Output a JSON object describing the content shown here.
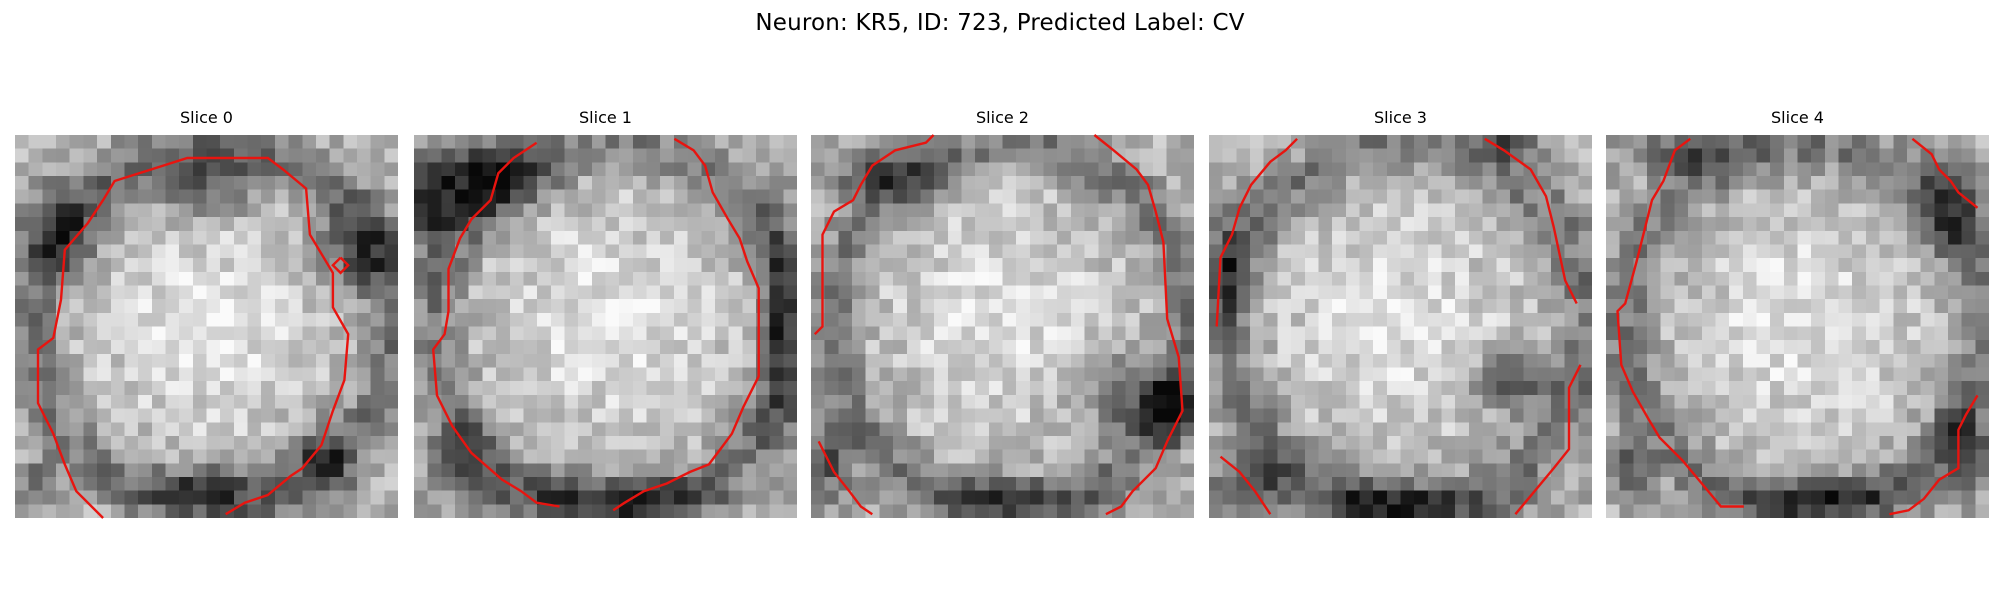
{
  "figure": {
    "title": "Neuron: KR5, ID: 723, Predicted Label: CV"
  },
  "contour_color": "#e8140f",
  "slices": [
    {
      "label": "Slice 0",
      "dark_spots": [
        [
          0.5,
          0.13,
          0.14,
          0.08
        ],
        [
          0.12,
          0.25,
          0.1,
          0.12
        ],
        [
          0.9,
          0.3,
          0.1,
          0.12
        ],
        [
          0.06,
          0.9,
          0.05,
          0.05
        ],
        [
          0.5,
          0.92,
          0.15,
          0.06
        ],
        [
          0.8,
          0.85,
          0.08,
          0.1
        ]
      ],
      "bright_spots": [
        [
          0.47,
          0.52,
          0.3,
          0.32
        ]
      ],
      "contours": [
        [
          [
            0.23,
            1.0
          ],
          [
            0.16,
            0.93
          ],
          [
            0.13,
            0.86
          ],
          [
            0.1,
            0.78
          ],
          [
            0.06,
            0.7
          ],
          [
            0.06,
            0.56
          ],
          [
            0.1,
            0.53
          ],
          [
            0.12,
            0.43
          ],
          [
            0.13,
            0.3
          ],
          [
            0.19,
            0.23
          ],
          [
            0.23,
            0.17
          ],
          [
            0.26,
            0.12
          ],
          [
            0.45,
            0.06
          ],
          [
            0.66,
            0.06
          ],
          [
            0.7,
            0.09
          ],
          [
            0.76,
            0.14
          ],
          [
            0.77,
            0.26
          ],
          [
            0.83,
            0.36
          ],
          [
            0.83,
            0.45
          ],
          [
            0.87,
            0.52
          ],
          [
            0.86,
            0.64
          ],
          [
            0.83,
            0.72
          ],
          [
            0.8,
            0.81
          ],
          [
            0.75,
            0.87
          ],
          [
            0.72,
            0.89
          ],
          [
            0.66,
            0.94
          ],
          [
            0.6,
            0.96
          ],
          [
            0.55,
            0.99
          ]
        ],
        [
          [
            0.85,
            0.32
          ],
          [
            0.87,
            0.34
          ],
          [
            0.85,
            0.36
          ],
          [
            0.83,
            0.34
          ],
          [
            0.85,
            0.32
          ]
        ]
      ]
    },
    {
      "label": "Slice 1",
      "dark_spots": [
        [
          0.1,
          0.13,
          0.13,
          0.12
        ],
        [
          0.24,
          0.11,
          0.12,
          0.08
        ],
        [
          0.04,
          0.2,
          0.05,
          0.1
        ],
        [
          0.5,
          0.95,
          0.3,
          0.06
        ],
        [
          0.95,
          0.5,
          0.05,
          0.3
        ],
        [
          0.12,
          0.85,
          0.08,
          0.08
        ]
      ],
      "bright_spots": [
        [
          0.5,
          0.45,
          0.32,
          0.33
        ]
      ],
      "contours": [
        [
          [
            0.38,
            0.97
          ],
          [
            0.32,
            0.96
          ],
          [
            0.28,
            0.93
          ],
          [
            0.23,
            0.9
          ],
          [
            0.15,
            0.83
          ],
          [
            0.1,
            0.76
          ],
          [
            0.06,
            0.68
          ],
          [
            0.05,
            0.56
          ],
          [
            0.08,
            0.52
          ],
          [
            0.09,
            0.46
          ],
          [
            0.09,
            0.35
          ],
          [
            0.12,
            0.27
          ],
          [
            0.15,
            0.22
          ],
          [
            0.2,
            0.17
          ],
          [
            0.22,
            0.1
          ],
          [
            0.26,
            0.06
          ],
          [
            0.32,
            0.02
          ]
        ],
        [
          [
            0.68,
            0.01
          ],
          [
            0.73,
            0.04
          ],
          [
            0.76,
            0.08
          ],
          [
            0.78,
            0.15
          ],
          [
            0.82,
            0.22
          ],
          [
            0.85,
            0.27
          ],
          [
            0.87,
            0.33
          ],
          [
            0.9,
            0.4
          ],
          [
            0.9,
            0.52
          ],
          [
            0.9,
            0.63
          ],
          [
            0.86,
            0.71
          ],
          [
            0.83,
            0.78
          ],
          [
            0.8,
            0.82
          ],
          [
            0.77,
            0.86
          ],
          [
            0.72,
            0.88
          ],
          [
            0.66,
            0.91
          ],
          [
            0.6,
            0.93
          ],
          [
            0.55,
            0.96
          ],
          [
            0.52,
            0.98
          ]
        ]
      ]
    },
    {
      "label": "Slice 2",
      "dark_spots": [
        [
          0.85,
          0.68,
          0.13,
          0.1
        ],
        [
          0.94,
          0.72,
          0.06,
          0.08
        ],
        [
          0.2,
          0.1,
          0.14,
          0.06
        ],
        [
          0.04,
          0.85,
          0.06,
          0.1
        ],
        [
          0.5,
          0.95,
          0.2,
          0.05
        ]
      ],
      "bright_spots": [
        [
          0.45,
          0.4,
          0.3,
          0.28
        ]
      ],
      "contours": [
        [
          [
            0.01,
            0.52
          ],
          [
            0.03,
            0.5
          ],
          [
            0.03,
            0.26
          ],
          [
            0.06,
            0.2
          ],
          [
            0.11,
            0.17
          ],
          [
            0.13,
            0.13
          ],
          [
            0.16,
            0.08
          ],
          [
            0.22,
            0.04
          ],
          [
            0.3,
            0.02
          ],
          [
            0.32,
            0.0
          ]
        ],
        [
          [
            0.74,
            0.0
          ],
          [
            0.79,
            0.04
          ],
          [
            0.85,
            0.09
          ],
          [
            0.88,
            0.13
          ],
          [
            0.9,
            0.2
          ],
          [
            0.92,
            0.28
          ],
          [
            0.93,
            0.48
          ],
          [
            0.96,
            0.58
          ],
          [
            0.97,
            0.72
          ],
          [
            0.93,
            0.8
          ],
          [
            0.9,
            0.87
          ],
          [
            0.84,
            0.93
          ],
          [
            0.81,
            0.97
          ],
          [
            0.77,
            0.99
          ]
        ],
        [
          [
            0.02,
            0.8
          ],
          [
            0.06,
            0.88
          ],
          [
            0.1,
            0.93
          ],
          [
            0.13,
            0.97
          ],
          [
            0.16,
            0.99
          ]
        ]
      ]
    },
    {
      "label": "Slice 3",
      "dark_spots": [
        [
          0.8,
          0.64,
          0.12,
          0.08
        ],
        [
          0.11,
          0.9,
          0.1,
          0.07
        ],
        [
          0.5,
          0.96,
          0.3,
          0.05
        ],
        [
          0.05,
          0.35,
          0.05,
          0.14
        ],
        [
          0.78,
          0.03,
          0.1,
          0.04
        ]
      ],
      "bright_spots": [
        [
          0.45,
          0.45,
          0.3,
          0.3
        ]
      ],
      "contours": [
        [
          [
            0.02,
            0.5
          ],
          [
            0.03,
            0.32
          ],
          [
            0.06,
            0.26
          ],
          [
            0.08,
            0.19
          ],
          [
            0.11,
            0.13
          ],
          [
            0.16,
            0.07
          ],
          [
            0.2,
            0.04
          ],
          [
            0.23,
            0.01
          ]
        ],
        [
          [
            0.72,
            0.01
          ],
          [
            0.77,
            0.04
          ],
          [
            0.84,
            0.09
          ],
          [
            0.88,
            0.16
          ],
          [
            0.9,
            0.24
          ],
          [
            0.93,
            0.38
          ],
          [
            0.96,
            0.44
          ]
        ],
        [
          [
            0.97,
            0.6
          ],
          [
            0.94,
            0.66
          ],
          [
            0.94,
            0.82
          ],
          [
            0.9,
            0.87
          ],
          [
            0.85,
            0.93
          ],
          [
            0.8,
            0.99
          ]
        ],
        [
          [
            0.03,
            0.84
          ],
          [
            0.08,
            0.88
          ],
          [
            0.12,
            0.93
          ],
          [
            0.16,
            0.99
          ]
        ]
      ]
    },
    {
      "label": "Slice 4",
      "dark_spots": [
        [
          0.2,
          0.05,
          0.15,
          0.05
        ],
        [
          0.9,
          0.2,
          0.08,
          0.12
        ],
        [
          0.93,
          0.82,
          0.07,
          0.12
        ],
        [
          0.06,
          0.87,
          0.05,
          0.07
        ],
        [
          0.55,
          0.95,
          0.25,
          0.05
        ]
      ],
      "bright_spots": [
        [
          0.5,
          0.5,
          0.3,
          0.33
        ]
      ],
      "contours": [
        [
          [
            0.22,
            0.01
          ],
          [
            0.18,
            0.04
          ],
          [
            0.15,
            0.12
          ],
          [
            0.12,
            0.17
          ],
          [
            0.1,
            0.25
          ],
          [
            0.08,
            0.33
          ],
          [
            0.05,
            0.44
          ],
          [
            0.03,
            0.46
          ],
          [
            0.04,
            0.6
          ],
          [
            0.07,
            0.67
          ],
          [
            0.11,
            0.74
          ],
          [
            0.14,
            0.79
          ],
          [
            0.2,
            0.85
          ],
          [
            0.25,
            0.91
          ],
          [
            0.3,
            0.97
          ],
          [
            0.36,
            0.97
          ]
        ],
        [
          [
            0.8,
            0.01
          ],
          [
            0.85,
            0.05
          ],
          [
            0.87,
            0.09
          ],
          [
            0.9,
            0.12
          ],
          [
            0.92,
            0.15
          ],
          [
            0.97,
            0.19
          ]
        ],
        [
          [
            0.97,
            0.68
          ],
          [
            0.94,
            0.73
          ],
          [
            0.92,
            0.77
          ],
          [
            0.92,
            0.87
          ],
          [
            0.87,
            0.9
          ],
          [
            0.83,
            0.95
          ],
          [
            0.79,
            0.98
          ],
          [
            0.74,
            0.99
          ]
        ]
      ]
    }
  ]
}
